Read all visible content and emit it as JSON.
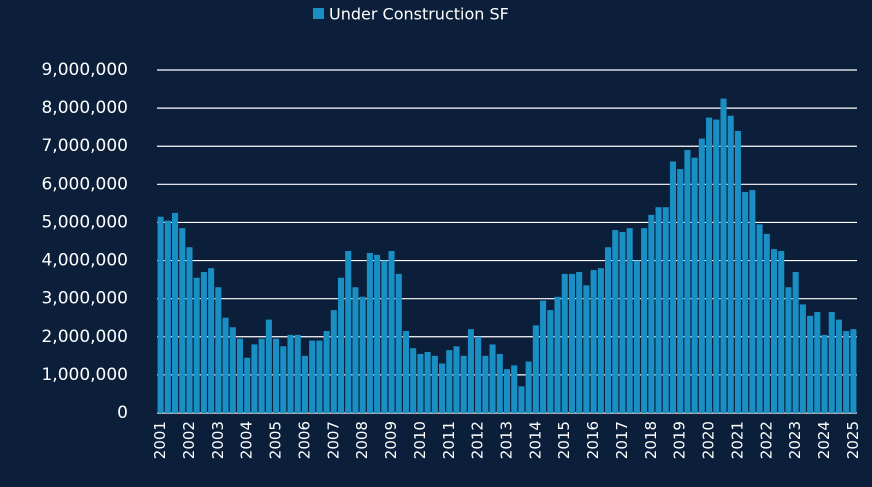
{
  "chart_data": {
    "type": "bar",
    "legend": "top",
    "grid": true,
    "categories": [
      "2001",
      null,
      null,
      null,
      "2002",
      null,
      null,
      null,
      "2003",
      null,
      null,
      null,
      "2004",
      null,
      null,
      null,
      "2005",
      null,
      null,
      null,
      "2006",
      null,
      null,
      null,
      "2007",
      null,
      null,
      null,
      "2008",
      null,
      null,
      null,
      "2009",
      null,
      null,
      null,
      "2010",
      null,
      null,
      null,
      "2011",
      null,
      null,
      null,
      "2012",
      null,
      null,
      null,
      "2013",
      null,
      null,
      null,
      "2014",
      null,
      null,
      null,
      "2015",
      null,
      null,
      null,
      "2016",
      null,
      null,
      null,
      "2017",
      null,
      null,
      null,
      "2018",
      null,
      null,
      null,
      "2019",
      null,
      null,
      null,
      "2020",
      null,
      null,
      null,
      "2021",
      null,
      null,
      null,
      "2022",
      null,
      null,
      null,
      "2023",
      null,
      null,
      null,
      "2024",
      null,
      null,
      null,
      "2025"
    ],
    "series": [
      {
        "name": "Under Construction SF",
        "color": "#1a8fc4",
        "values": [
          5150000,
          5050000,
          5250000,
          4850000,
          4350000,
          3550000,
          3700000,
          3800000,
          3300000,
          2500000,
          2250000,
          1950000,
          1450000,
          1800000,
          1950000,
          2450000,
          1950000,
          1750000,
          2050000,
          2050000,
          1500000,
          1900000,
          1900000,
          2150000,
          2700000,
          3550000,
          4250000,
          3300000,
          3050000,
          4200000,
          4150000,
          4000000,
          4250000,
          3650000,
          2150000,
          1700000,
          1550000,
          1600000,
          1500000,
          1300000,
          1650000,
          1750000,
          1500000,
          2200000,
          2000000,
          1500000,
          1800000,
          1550000,
          1150000,
          1250000,
          700000,
          1350000,
          2300000,
          2950000,
          2700000,
          3050000,
          3650000,
          3650000,
          3700000,
          3350000,
          3750000,
          3800000,
          4350000,
          4800000,
          4750000,
          4850000,
          4000000,
          4850000,
          5200000,
          5400000,
          5400000,
          6600000,
          6400000,
          6900000,
          6700000,
          7200000,
          7750000,
          7700000,
          8250000,
          7800000,
          7400000,
          5800000,
          5850000,
          4950000,
          4700000,
          4300000,
          4250000,
          3300000,
          3700000,
          2850000,
          2550000,
          2650000,
          2050000,
          2650000,
          2450000,
          2150000,
          2200000
        ]
      }
    ],
    "ylim": [
      0,
      9000000
    ],
    "yticks": [
      0,
      {
        "value": 1000000,
        "label": "1,000,000"
      },
      {
        "value": 2000000,
        "label": "2,000,000"
      },
      {
        "value": 3000000,
        "label": "3,000,000"
      },
      {
        "value": 4000000,
        "label": "4,000,000"
      },
      {
        "value": 5000000,
        "label": "5,000,000"
      },
      {
        "value": 6000000,
        "label": "6,000,000"
      },
      {
        "value": 7000000,
        "label": "7,000,000"
      },
      {
        "value": 8000000,
        "label": "8,000,000"
      },
      {
        "value": 9000000,
        "label": "9,000,000"
      }
    ]
  }
}
